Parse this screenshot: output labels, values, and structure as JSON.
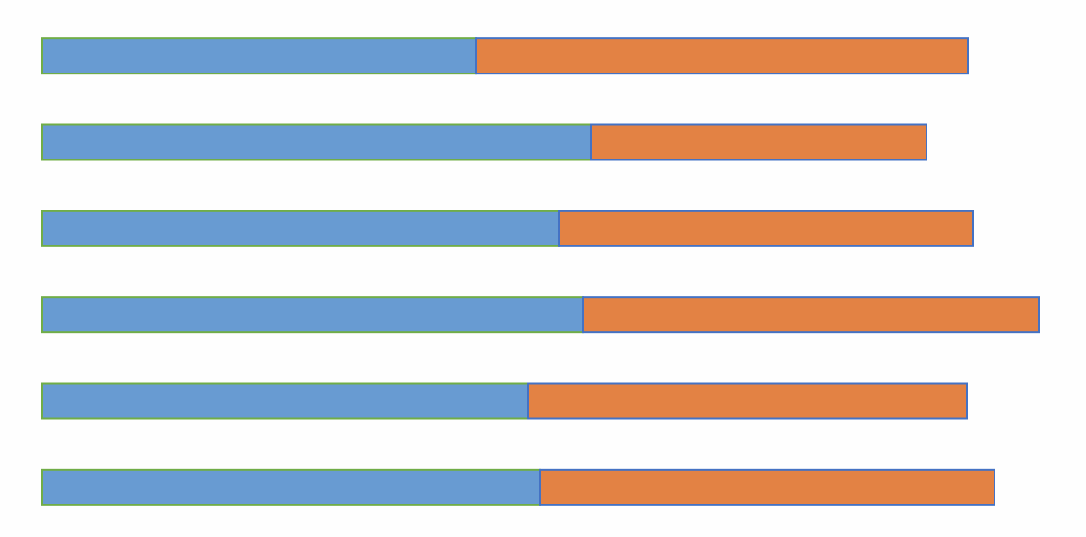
{
  "chart_data": {
    "type": "stacked-barh",
    "categories": [
      null,
      null,
      null,
      null,
      null,
      null
    ],
    "series": [
      {
        "color": "#689bd2",
        "edgecolor": "#70ad47",
        "values": [
          544,
          688,
          648,
          678,
          609,
          624
        ]
      },
      {
        "color": "#e38244",
        "edgecolor": "#4472c4",
        "values": [
          617,
          421,
          519,
          572,
          551,
          570
        ]
      }
    ],
    "xlim": [
      0,
      1250
    ]
  }
}
